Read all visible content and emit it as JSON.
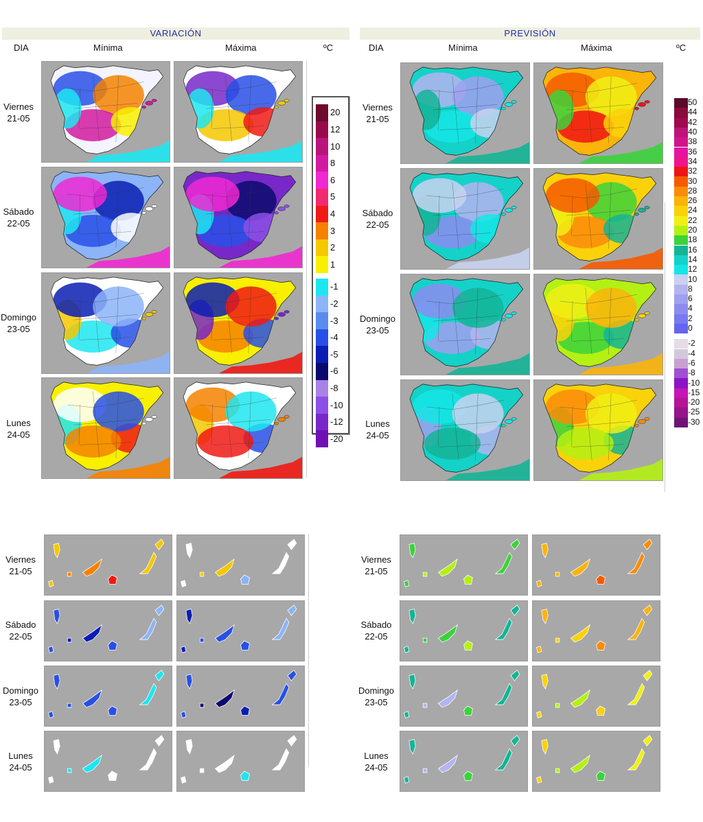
{
  "left_panel": {
    "title": "VARIACIÓN",
    "col_dia": "DIA",
    "col_min": "Mínima",
    "col_max": "Máxima",
    "unit": "ºC",
    "legend": [
      {
        "label": "20",
        "color": "#6e0a2e"
      },
      {
        "label": "12",
        "color": "#990a4a"
      },
      {
        "label": "10",
        "color": "#b8147a"
      },
      {
        "label": "8",
        "color": "#d21aa0"
      },
      {
        "label": "6",
        "color": "#f028d2"
      },
      {
        "label": "5",
        "color": "#f22a6e"
      },
      {
        "label": "4",
        "color": "#f01a14"
      },
      {
        "label": "3",
        "color": "#f58200"
      },
      {
        "label": "2",
        "color": "#f5c800"
      },
      {
        "label": "1",
        "color": "#f8f000"
      },
      {
        "label": "-1",
        "color": "#1ee6f0"
      },
      {
        "label": "-2",
        "color": "#8cb4f8"
      },
      {
        "label": "-3",
        "color": "#5a8cf0"
      },
      {
        "label": "-4",
        "color": "#2850e6"
      },
      {
        "label": "-5",
        "color": "#0a1eb4"
      },
      {
        "label": "-6",
        "color": "#0a0a6e"
      },
      {
        "label": "-8",
        "color": "#a882e6"
      },
      {
        "label": "-10",
        "color": "#8c50e6"
      },
      {
        "label": "-12",
        "color": "#7828c8"
      },
      {
        "label": "-20",
        "color": "#7010b4"
      }
    ]
  },
  "right_panel": {
    "title": "PREVISIÓN",
    "col_dia": "DIA",
    "col_min": "Mínima",
    "col_max": "Máxima",
    "unit": "ºC",
    "legend": [
      {
        "label": "50",
        "color": "#5a0a2a"
      },
      {
        "label": "44",
        "color": "#8c0a3c"
      },
      {
        "label": "42",
        "color": "#a00a50"
      },
      {
        "label": "40",
        "color": "#be1478"
      },
      {
        "label": "38",
        "color": "#d2148c"
      },
      {
        "label": "36",
        "color": "#e614a0"
      },
      {
        "label": "34",
        "color": "#f0148c"
      },
      {
        "label": "32",
        "color": "#f01414"
      },
      {
        "label": "30",
        "color": "#f55a00"
      },
      {
        "label": "28",
        "color": "#fa8c0a"
      },
      {
        "label": "26",
        "color": "#fab40a"
      },
      {
        "label": "24",
        "color": "#fad20a"
      },
      {
        "label": "22",
        "color": "#f0f014"
      },
      {
        "label": "20",
        "color": "#b4f014"
      },
      {
        "label": "18",
        "color": "#3cd23c"
      },
      {
        "label": "16",
        "color": "#14b496"
      },
      {
        "label": "14",
        "color": "#14d2c8"
      },
      {
        "label": "12",
        "color": "#14e6e6"
      },
      {
        "label": "10",
        "color": "#c8d2f0"
      },
      {
        "label": "8",
        "color": "#b4b4f0"
      },
      {
        "label": "6",
        "color": "#a0a0f0"
      },
      {
        "label": "4",
        "color": "#8c8cf0"
      },
      {
        "label": "2",
        "color": "#7878f0"
      },
      {
        "label": "0",
        "color": "#6464f0"
      },
      {
        "label": "-2",
        "color": "#e6dce6"
      },
      {
        "label": "-4",
        "color": "#d2c8dc"
      },
      {
        "label": "-6",
        "color": "#c8a0d2"
      },
      {
        "label": "-8",
        "color": "#a050d2"
      },
      {
        "label": "-10",
        "color": "#8c14c8"
      },
      {
        "label": "-15",
        "color": "#c814b4"
      },
      {
        "label": "-20",
        "color": "#b41496"
      },
      {
        "label": "-25",
        "color": "#96148c"
      },
      {
        "label": "-30",
        "color": "#6e1478"
      }
    ]
  },
  "days": [
    {
      "name": "Viernes",
      "date": "21-05"
    },
    {
      "name": "Sábado",
      "date": "22-05"
    },
    {
      "name": "Domingo",
      "date": "23-05"
    },
    {
      "name": "Lunes",
      "date": "24-05"
    }
  ],
  "peninsula_maps": {
    "variacion_min": [
      {
        "base": "#f4f4ff",
        "blobs": [
          "#2850e6",
          "#f58200",
          "#d21aa0",
          "#f8f000",
          "#1ee6f0"
        ]
      },
      {
        "base": "#8cb4f8",
        "blobs": [
          "#0a1eb4",
          "#2850e6",
          "#ffffff",
          "#1ee6f0",
          "#f028d2"
        ]
      },
      {
        "base": "#ffffff",
        "blobs": [
          "#1ee6f0",
          "#2850e6",
          "#f5c800",
          "#0a1eb4",
          "#8cb4f8"
        ]
      },
      {
        "base": "#f8f000",
        "blobs": [
          "#f01a14",
          "#1ee6f0",
          "#ffffff",
          "#2850e6",
          "#f58200"
        ]
      }
    ],
    "variacion_max": [
      {
        "base": "#ffffff",
        "blobs": [
          "#7828c8",
          "#2850e6",
          "#f5c800",
          "#f01a14",
          "#1ee6f0"
        ]
      },
      {
        "base": "#7828c8",
        "blobs": [
          "#0a0a6e",
          "#2850e6",
          "#8c50e6",
          "#1ee6f0",
          "#f028d2"
        ]
      },
      {
        "base": "#f8f000",
        "blobs": [
          "#f58200",
          "#2850e6",
          "#7828c8",
          "#0a1eb4",
          "#f01a14"
        ]
      },
      {
        "base": "#ffffff",
        "blobs": [
          "#2850e6",
          "#f5c800",
          "#f58200",
          "#1ee6f0",
          "#f01a14"
        ]
      }
    ],
    "prevision_min": [
      {
        "base": "#14d2c8",
        "blobs": [
          "#b4b4f0",
          "#a0a0f0",
          "#14e6e6",
          "#c8d2f0",
          "#14b496"
        ]
      },
      {
        "base": "#14d2c8",
        "blobs": [
          "#b4b4f0",
          "#8c8cf0",
          "#14e6e6",
          "#14b496",
          "#c8d2f0"
        ]
      },
      {
        "base": "#14d2c8",
        "blobs": [
          "#a0a0f0",
          "#b4b4f0",
          "#14e6e6",
          "#8c8cf0",
          "#14b496"
        ]
      },
      {
        "base": "#14d2c8",
        "blobs": [
          "#b4b4f0",
          "#a0a0f0",
          "#14e6e6",
          "#c8d2f0",
          "#14b496"
        ]
      }
    ],
    "prevision_max": [
      {
        "base": "#fab40a",
        "blobs": [
          "#f55a00",
          "#f0f014",
          "#f01414",
          "#fad20a",
          "#3cd23c"
        ]
      },
      {
        "base": "#fad20a",
        "blobs": [
          "#3cd23c",
          "#fa8c0a",
          "#14b496",
          "#f0f014",
          "#f55a00"
        ]
      },
      {
        "base": "#b4f014",
        "blobs": [
          "#3cd23c",
          "#14b496",
          "#fad20a",
          "#f0f014",
          "#fab40a"
        ]
      },
      {
        "base": "#fad20a",
        "blobs": [
          "#14b496",
          "#3cd23c",
          "#fa8c0a",
          "#f0f014",
          "#b4f014"
        ]
      }
    ]
  },
  "canary_maps": {
    "variacion_min": [
      [
        "#f5c800",
        "#f58200",
        "#f01a14",
        "#f5c800"
      ],
      [
        "#2850e6",
        "#0a1eb4",
        "#2850e6",
        "#8cb4f8"
      ],
      [
        "#2850e6",
        "#2850e6",
        "#2850e6",
        "#1ee6f0"
      ],
      [
        "#ffffff",
        "#1ee6f0",
        "#ffffff",
        "#ffffff"
      ]
    ],
    "variacion_max": [
      [
        "#ffffff",
        "#f5c800",
        "#8cb4f8",
        "#ffffff"
      ],
      [
        "#0a1eb4",
        "#2850e6",
        "#2850e6",
        "#8cb4f8"
      ],
      [
        "#2850e6",
        "#0a0a6e",
        "#0a1eb4",
        "#2850e6"
      ],
      [
        "#ffffff",
        "#ffffff",
        "#1ee6f0",
        "#ffffff"
      ]
    ],
    "prevision_min": [
      [
        "#3cd23c",
        "#b4f014",
        "#b4f014",
        "#3cd23c"
      ],
      [
        "#14b496",
        "#3cd23c",
        "#b4f014",
        "#14b496"
      ],
      [
        "#14b496",
        "#b4b4f0",
        "#3cd23c",
        "#14b496"
      ],
      [
        "#14b496",
        "#b4b4f0",
        "#3cd23c",
        "#14b496"
      ]
    ],
    "prevision_max": [
      [
        "#fab40a",
        "#fab40a",
        "#f55a00",
        "#fa8c0a"
      ],
      [
        "#fab40a",
        "#fad20a",
        "#fa8c0a",
        "#fab40a"
      ],
      [
        "#fad20a",
        "#b4f014",
        "#fad20a",
        "#f0f014"
      ],
      [
        "#fad20a",
        "#b4f014",
        "#3cd23c",
        "#f0f014"
      ]
    ]
  }
}
